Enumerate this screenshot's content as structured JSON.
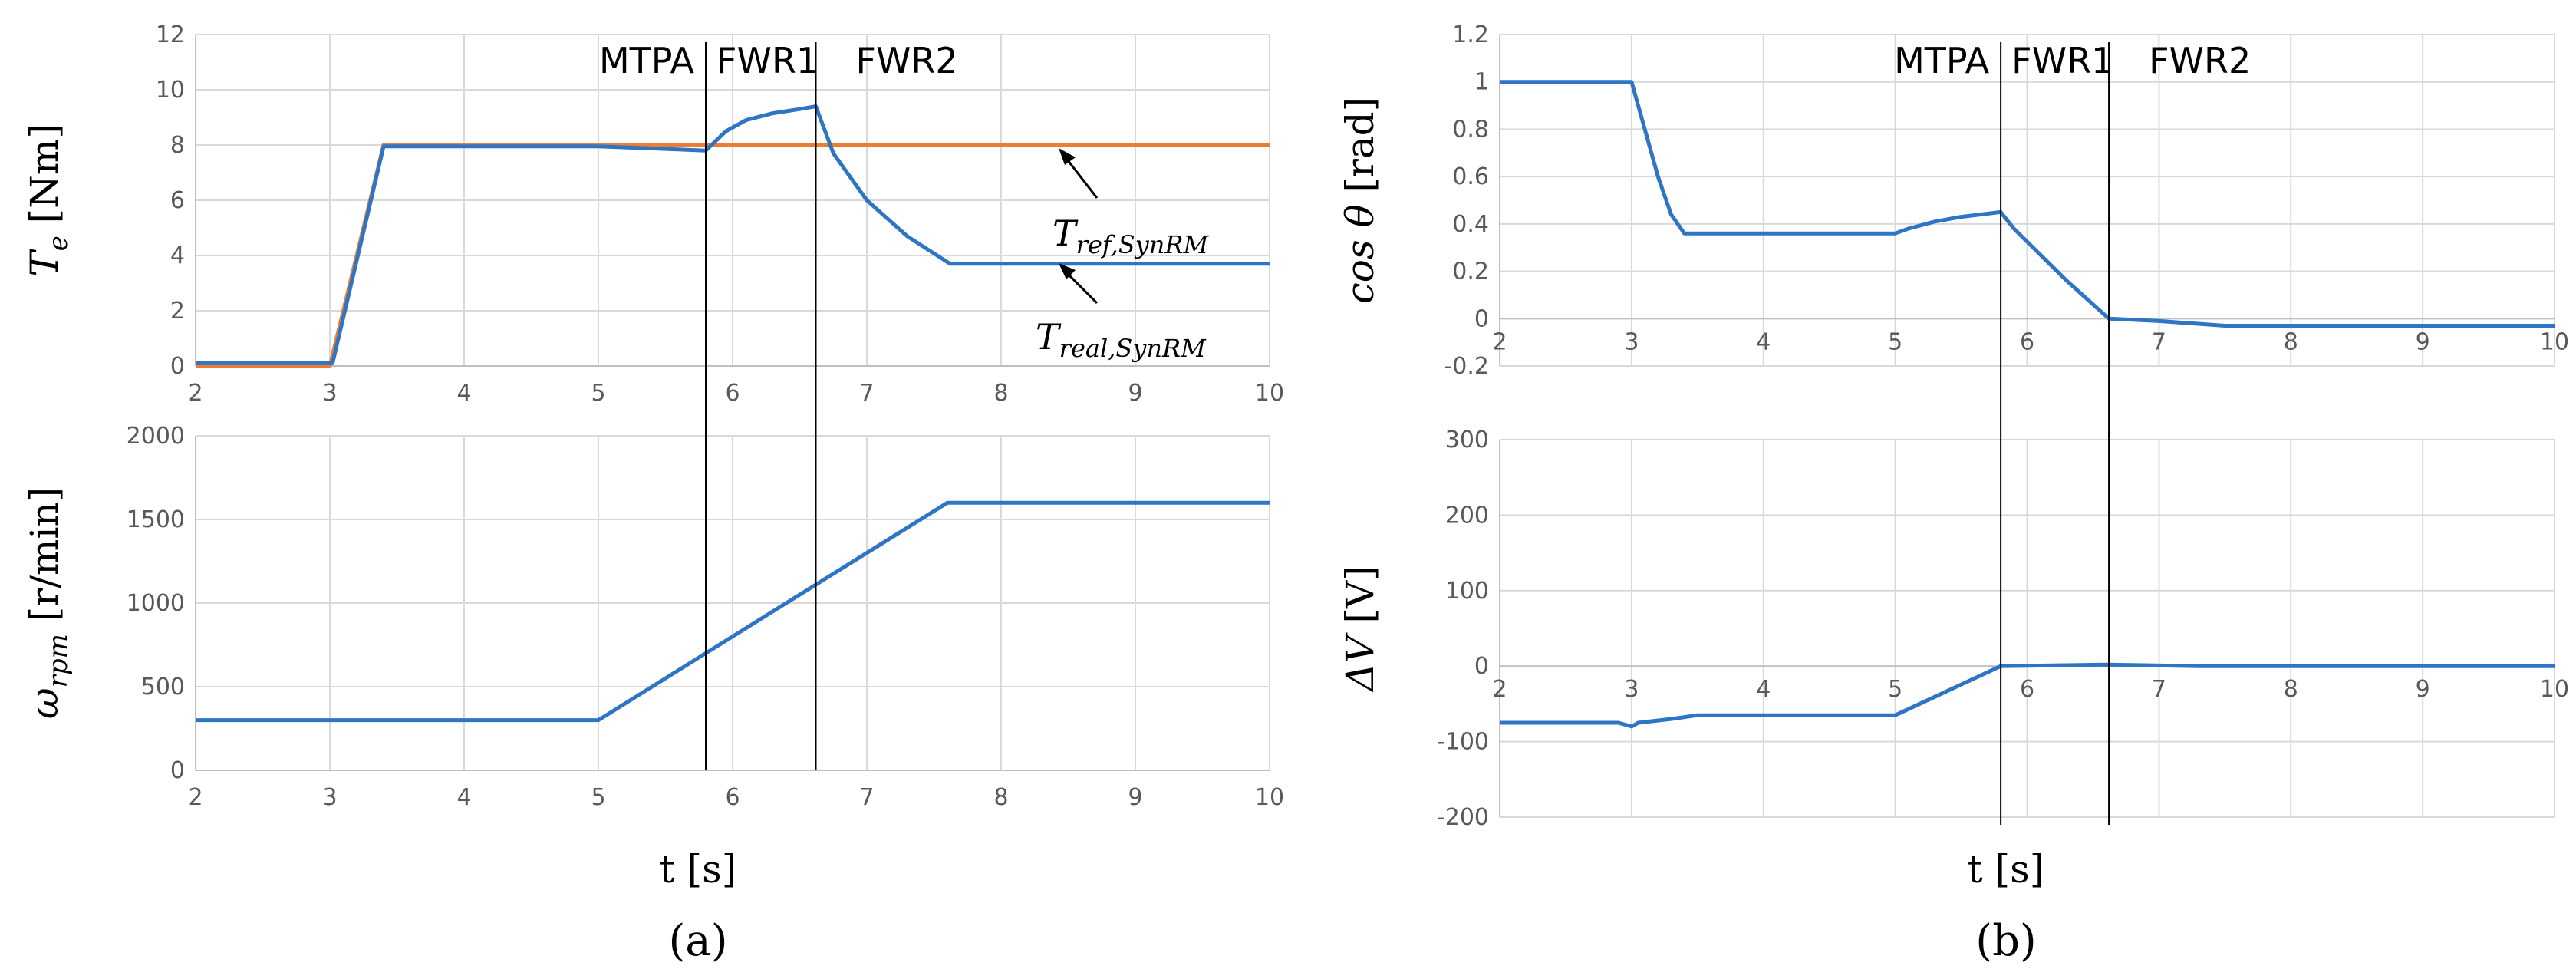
{
  "figure": {
    "captions": [
      "(a)",
      "(b)"
    ],
    "shared_xlabel": "t [s]"
  },
  "annotations": {
    "tref": {
      "main": "T",
      "sub": "ref,SynRM"
    },
    "treal": {
      "main": "T",
      "sub": "real,SynRM"
    }
  },
  "chart_data": [
    {
      "id": "torque",
      "type": "line",
      "title": "",
      "xlabel": "",
      "ylabel": {
        "main": "T",
        "sub": "e",
        "unit": " [Nm]"
      },
      "xlim": [
        2,
        10
      ],
      "ylim": [
        0,
        12
      ],
      "xticks": [
        "2",
        "3",
        "4",
        "5",
        "6",
        "7",
        "8",
        "9",
        "10"
      ],
      "yticks": [
        "0",
        "2",
        "4",
        "6",
        "8",
        "10",
        "12"
      ],
      "regions": [
        "MTPA",
        "FWR1",
        "FWR2"
      ],
      "region_boundaries": [
        5.8,
        6.62
      ],
      "series": [
        {
          "name": "T_ref,SynRM",
          "color": "#ED7D31",
          "x": [
            2,
            3,
            3.4,
            10
          ],
          "y": [
            0,
            0,
            8,
            8
          ]
        },
        {
          "name": "T_real,SynRM",
          "color": "#2E75C6",
          "x": [
            2,
            3.02,
            3.4,
            5,
            5.8,
            5.95,
            6.1,
            6.3,
            6.5,
            6.62,
            6.75,
            7.0,
            7.3,
            7.62,
            10
          ],
          "y": [
            0.1,
            0.1,
            7.95,
            7.95,
            7.8,
            8.5,
            8.9,
            9.15,
            9.3,
            9.4,
            7.7,
            6.0,
            4.7,
            3.7,
            3.7
          ]
        }
      ]
    },
    {
      "id": "speed",
      "type": "line",
      "title": "",
      "xlabel": "t [s]",
      "ylabel": {
        "main": "ω",
        "sub": "rpm",
        "unit": " [r/min]"
      },
      "xlim": [
        2,
        10
      ],
      "ylim": [
        0,
        2000
      ],
      "xticks": [
        "2",
        "3",
        "4",
        "5",
        "6",
        "7",
        "8",
        "9",
        "10"
      ],
      "yticks": [
        "0",
        "500",
        "1000",
        "1500",
        "2000"
      ],
      "region_boundaries": [
        5.8,
        6.62
      ],
      "series": [
        {
          "name": "ω_rpm",
          "color": "#2E75C6",
          "x": [
            2,
            5,
            7.6,
            10
          ],
          "y": [
            300,
            300,
            1600,
            1600
          ]
        }
      ]
    },
    {
      "id": "pf",
      "type": "line",
      "title": "",
      "xlabel": "",
      "ylabel": {
        "main": "cos θ",
        "sub": "",
        "unit": " [rad]"
      },
      "xlim": [
        2,
        10
      ],
      "ylim": [
        -0.2,
        1.2
      ],
      "xticks": [
        "2",
        "3",
        "4",
        "5",
        "6",
        "7",
        "8",
        "9",
        "10"
      ],
      "yticks": [
        "-0.2",
        "0",
        "0.2",
        "0.4",
        "0.6",
        "0.8",
        "1",
        "1.2"
      ],
      "regions": [
        "MTPA",
        "FWR1",
        "FWR2"
      ],
      "region_boundaries": [
        5.8,
        6.62
      ],
      "series": [
        {
          "name": "cos θ",
          "color": "#2E75C6",
          "x": [
            2,
            3,
            3.1,
            3.2,
            3.3,
            3.4,
            5,
            5.1,
            5.3,
            5.5,
            5.8,
            5.9,
            6.1,
            6.3,
            6.62,
            7.0,
            7.5,
            10
          ],
          "y": [
            1.0,
            1.0,
            0.8,
            0.6,
            0.44,
            0.36,
            0.36,
            0.38,
            0.41,
            0.43,
            0.45,
            0.38,
            0.27,
            0.16,
            0.0,
            -0.01,
            -0.03,
            -0.03
          ]
        }
      ]
    },
    {
      "id": "dv",
      "type": "line",
      "title": "",
      "xlabel": "t [s]",
      "ylabel": {
        "main": "ΔV",
        "sub": "",
        "unit": " [V]"
      },
      "xlim": [
        2,
        10
      ],
      "ylim": [
        -200,
        300
      ],
      "xticks": [
        "2",
        "3",
        "4",
        "5",
        "6",
        "7",
        "8",
        "9",
        "10"
      ],
      "yticks": [
        "-200",
        "-100",
        "0",
        "100",
        "200",
        "300"
      ],
      "region_boundaries": [
        5.8,
        6.62
      ],
      "series": [
        {
          "name": "ΔV",
          "color": "#2E75C6",
          "x": [
            2,
            2.9,
            3,
            3.05,
            3.3,
            3.5,
            5,
            5.8,
            6.6,
            7.3,
            10
          ],
          "y": [
            -75,
            -75,
            -80,
            -75,
            -70,
            -65,
            -65,
            0,
            2,
            0,
            0
          ]
        }
      ]
    }
  ]
}
